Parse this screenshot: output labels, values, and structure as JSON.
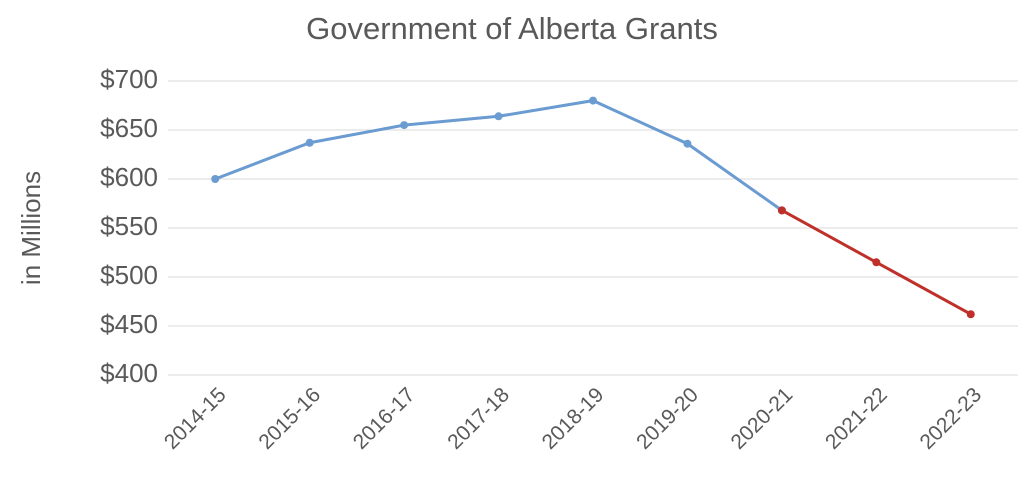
{
  "chart_data": {
    "type": "line",
    "title": "Government of Alberta Grants",
    "y_label": "in Millions",
    "categories": [
      "2014-15",
      "2015-16",
      "2016-17",
      "2017-18",
      "2018-19",
      "2019-20",
      "2020-21",
      "2021-22",
      "2022-23"
    ],
    "series": [
      {
        "color": "#6a9bd1",
        "values": [
          600,
          637,
          655,
          664,
          680,
          636,
          568,
          null,
          null
        ]
      },
      {
        "color": "#c0302b",
        "values": [
          null,
          null,
          null,
          null,
          null,
          null,
          568,
          515,
          462
        ]
      }
    ],
    "ylim": [
      400,
      700
    ],
    "yticks": [
      {
        "value": 400,
        "label": "$400"
      },
      {
        "value": 450,
        "label": "$450"
      },
      {
        "value": 500,
        "label": "$500"
      },
      {
        "value": 550,
        "label": "$550"
      },
      {
        "value": 600,
        "label": "$600"
      },
      {
        "value": 650,
        "label": "$650"
      },
      {
        "value": 700,
        "label": "$700"
      }
    ],
    "grid": true
  }
}
